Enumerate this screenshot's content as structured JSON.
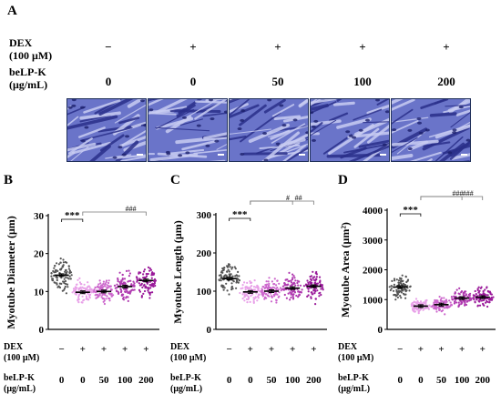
{
  "panelA": {
    "letter": "A",
    "dex_label": [
      "DEX",
      "(100 μM)"
    ],
    "belp_label": [
      "beLP-K",
      "(μg/mL)"
    ],
    "dex_signs": [
      "−",
      "+",
      "+",
      "+",
      "+"
    ],
    "belp_values": [
      "0",
      "0",
      "50",
      "100",
      "200"
    ]
  },
  "charts": [
    {
      "letter": "B",
      "ylabel": "Myotube Diameter (μm)",
      "yticks": [
        "0",
        "10",
        "20",
        "30"
      ],
      "ymax": 30,
      "means": [
        14.3,
        9.8,
        10.0,
        11.3,
        12.9
      ],
      "sig_main": "***",
      "sig_brackets": [
        "###"
      ],
      "xrow_label": [
        "DEX",
        "(100 μM)"
      ],
      "xrow2_label": [
        "beLP-K",
        "(μg/mL)"
      ],
      "xsigns": [
        "−",
        "+",
        "+",
        "+",
        "+"
      ],
      "xvals": [
        "0",
        "0",
        "50",
        "100",
        "200"
      ]
    },
    {
      "letter": "C",
      "ylabel": "Myotube Length (μm)",
      "yticks": [
        "0",
        "100",
        "200",
        "300"
      ],
      "ymax": 300,
      "means": [
        133,
        98,
        100,
        108,
        113
      ],
      "sig_main": "***",
      "sig_brackets": [
        "#",
        "##"
      ],
      "xrow_label": [
        "DEX",
        "(100 μM)"
      ],
      "xrow2_label": [
        "beLP-K",
        "(μg/mL)"
      ],
      "xsigns": [
        "−",
        "+",
        "+",
        "+",
        "+"
      ],
      "xvals": [
        "0",
        "0",
        "50",
        "100",
        "200"
      ]
    },
    {
      "letter": "D",
      "ylabel": "Myotube Area (μm²)",
      "yticks": [
        "0",
        "1000",
        "2000",
        "3000",
        "4000"
      ],
      "ymax": 4000,
      "means": [
        1420,
        780,
        830,
        1050,
        1080
      ],
      "sig_main": "***",
      "sig_brackets": [
        "###",
        "###"
      ],
      "xrow_label": [
        "DEX",
        "(100 μM)"
      ],
      "xrow2_label": [
        "beLP-K",
        "(μg/mL)"
      ],
      "xsigns": [
        "−",
        "+",
        "+",
        "+",
        "+"
      ],
      "xvals": [
        "0",
        "0",
        "50",
        "100",
        "200"
      ]
    }
  ],
  "colors": [
    "#555555",
    "#e8a0e8",
    "#cc66cc",
    "#b03ab0",
    "#9a1a9a"
  ]
}
